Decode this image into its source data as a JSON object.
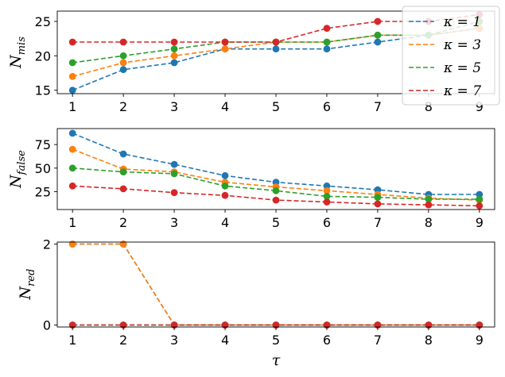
{
  "chart_data": [
    {
      "type": "line",
      "ylabel": {
        "base": "N",
        "sub": "mis"
      },
      "x": [
        1,
        2,
        3,
        4,
        5,
        6,
        7,
        8,
        9
      ],
      "xlim": [
        0.7,
        9.3
      ],
      "ylim": [
        14.5,
        26.5
      ],
      "yticks": [
        15,
        20,
        25
      ],
      "series": [
        {
          "name": "κ = 1",
          "color": "#1f77b4",
          "values": [
            15,
            18,
            19,
            21,
            21,
            21,
            22,
            23,
            24
          ]
        },
        {
          "name": "κ = 3",
          "color": "#ff7f0e",
          "values": [
            17,
            19,
            20,
            21,
            22,
            22,
            23,
            23,
            24
          ]
        },
        {
          "name": "κ = 5",
          "color": "#2ca02c",
          "values": [
            19,
            20,
            21,
            22,
            22,
            22,
            23,
            23,
            25
          ]
        },
        {
          "name": "κ = 7",
          "color": "#d62728",
          "values": [
            22,
            22,
            22,
            22,
            22,
            24,
            25,
            25,
            26
          ]
        }
      ],
      "legend": "top-right"
    },
    {
      "type": "line",
      "ylabel": {
        "base": "N",
        "sub": "false"
      },
      "x": [
        1,
        2,
        3,
        4,
        5,
        6,
        7,
        8,
        9
      ],
      "xlim": [
        0.7,
        9.3
      ],
      "ylim": [
        6,
        92
      ],
      "yticks": [
        25,
        50,
        75
      ],
      "series": [
        {
          "name": "κ = 1",
          "color": "#1f77b4",
          "values": [
            87,
            65,
            54,
            42,
            35,
            31,
            27,
            22,
            22
          ]
        },
        {
          "name": "κ = 3",
          "color": "#ff7f0e",
          "values": [
            70,
            49,
            46,
            35,
            30,
            26,
            22,
            18,
            16
          ]
        },
        {
          "name": "κ = 5",
          "color": "#2ca02c",
          "values": [
            50,
            46,
            44,
            31,
            26,
            20,
            19,
            17,
            17
          ]
        },
        {
          "name": "κ = 7",
          "color": "#d62728",
          "values": [
            31,
            28,
            24,
            21,
            16,
            14,
            12,
            11,
            10
          ]
        }
      ]
    },
    {
      "type": "line",
      "ylabel": {
        "base": "N",
        "sub": "red"
      },
      "xlabel": "τ",
      "x": [
        1,
        2,
        3,
        4,
        5,
        6,
        7,
        8,
        9
      ],
      "xlim": [
        0.7,
        9.3
      ],
      "ylim": [
        -0.05,
        2.05
      ],
      "yticks": [
        0,
        2
      ],
      "series": [
        {
          "name": "κ = 1",
          "color": "#1f77b4",
          "values": [
            2,
            2,
            0,
            0,
            0,
            0,
            0,
            0,
            0
          ]
        },
        {
          "name": "κ = 3",
          "color": "#ff7f0e",
          "values": [
            2,
            2,
            0,
            0,
            0,
            0,
            0,
            0,
            0
          ]
        },
        {
          "name": "κ = 5",
          "color": "#2ca02c",
          "values": [
            0,
            0,
            0,
            0,
            0,
            0,
            0,
            0,
            0
          ]
        },
        {
          "name": "κ = 7",
          "color": "#d62728",
          "values": [
            0,
            0,
            0,
            0,
            0,
            0,
            0,
            0,
            0
          ]
        }
      ]
    }
  ]
}
